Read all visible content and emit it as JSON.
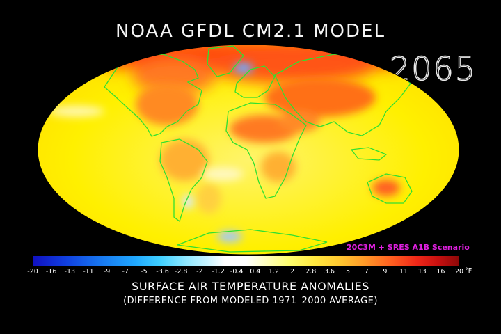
{
  "title": "NOAA GFDL CM2.1 MODEL",
  "year": "2065",
  "scenario": "20C3M + SRES A1B Scenario",
  "legend": {
    "ticks": [
      "-20",
      "-16",
      "-13",
      "-11",
      "-9",
      "-7",
      "-5",
      "-3.6",
      "-2.8",
      "-2",
      "-1.2",
      "-0.4",
      "0.4",
      "1.2",
      "2",
      "2.8",
      "3.6",
      "5",
      "7",
      "9",
      "11",
      "13",
      "16",
      "20"
    ],
    "unit": "°F"
  },
  "subtitle": "SURFACE AIR TEMPERATURE ANOMALIES",
  "note": "(DIFFERENCE FROM MODELED 1971–2000 AVERAGE)",
  "colors": {
    "background": "#000000",
    "coastline": "#30e030",
    "warm_base": "#fff000",
    "hot": "#ff5020",
    "cold": "#60a0ff",
    "scenario_text": "#e020e0"
  },
  "map": {
    "projection": "Mollweide",
    "variable": "surface air temperature anomaly"
  }
}
